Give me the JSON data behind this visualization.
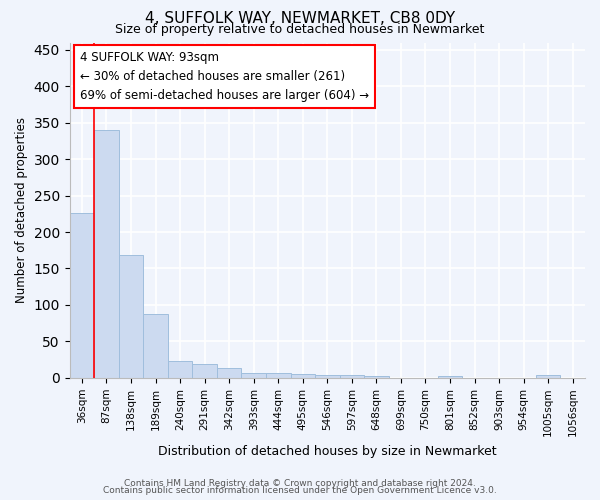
{
  "title": "4, SUFFOLK WAY, NEWMARKET, CB8 0DY",
  "subtitle": "Size of property relative to detached houses in Newmarket",
  "xlabel": "Distribution of detached houses by size in Newmarket",
  "ylabel": "Number of detached properties",
  "bar_color": "#ccdaf0",
  "bar_edgecolor": "#a0bedd",
  "categories": [
    "36sqm",
    "87sqm",
    "138sqm",
    "189sqm",
    "240sqm",
    "291sqm",
    "342sqm",
    "393sqm",
    "444sqm",
    "495sqm",
    "546sqm",
    "597sqm",
    "648sqm",
    "699sqm",
    "750sqm",
    "801sqm",
    "852sqm",
    "903sqm",
    "954sqm",
    "1005sqm",
    "1056sqm"
  ],
  "values": [
    226,
    340,
    168,
    88,
    23,
    19,
    14,
    7,
    7,
    5,
    4,
    4,
    2,
    0,
    0,
    2,
    0,
    0,
    0,
    4,
    0
  ],
  "ylim": [
    0,
    460
  ],
  "yticks": [
    0,
    50,
    100,
    150,
    200,
    250,
    300,
    350,
    400,
    450
  ],
  "annotation_title": "4 SUFFOLK WAY: 93sqm",
  "annotation_line1": "← 30% of detached houses are smaller (261)",
  "annotation_line2": "69% of semi-detached houses are larger (604) →",
  "redline_bar_index": 1,
  "footer1": "Contains HM Land Registry data © Crown copyright and database right 2024.",
  "footer2": "Contains public sector information licensed under the Open Government Licence v3.0.",
  "background_color": "#f0f4fc",
  "grid_color": "#dde5f5"
}
